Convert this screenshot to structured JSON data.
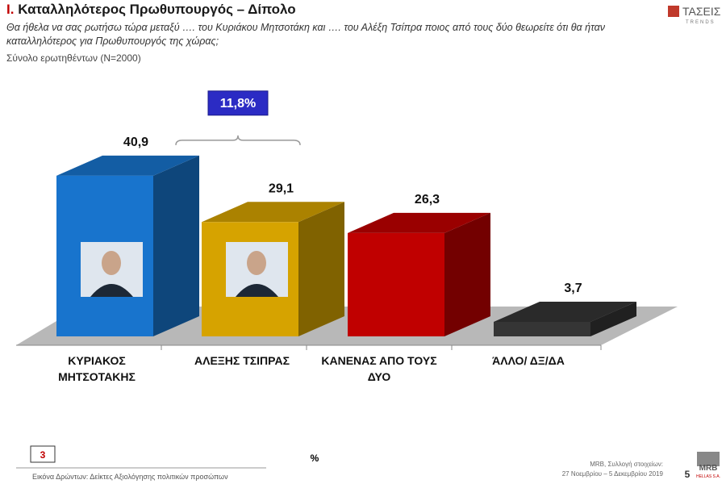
{
  "header": {
    "title_prefix": "Ι.",
    "title": "Καταλληλότερος Πρωθυπουργός – Δίπολο",
    "question": "Θα ήθελα να σας ρωτήσω τώρα μεταξύ …. του Κυριάκου Μητσοτάκη και …. του  Αλέξη Τσίπρα ποιος από τους δύο θεωρείτε ότι θα ήταν καταλληλότερος για Πρωθυπουργός της χώρας;",
    "base": "Σύνολο ερωτηθέντων (N=2000)",
    "logo": "ΤΑΣΕΙΣ",
    "logo_sub": "TRENDS"
  },
  "chart_data": {
    "type": "bar3d",
    "categories": [
      "ΚΥΡΙΑΚΟΣ ΜΗΤΣΟΤΑΚΗΣ",
      "ΑΛΕΞΗΣ ΤΣΙΠΡΑΣ",
      "ΚΑΝΕΝΑΣ ΑΠΟ ΤΟΥΣ ΔΥΟ",
      "ΆΛΛΟ/ ΔΞ/ΔΑ"
    ],
    "values": [
      40.9,
      29.1,
      26.3,
      3.7
    ],
    "value_labels": [
      "40,9",
      "29,1",
      "26,3",
      "3,7"
    ],
    "colors": [
      "#1874cd",
      "#d6a300",
      "#c00000",
      "#353535"
    ],
    "difference": {
      "value": 11.8,
      "label": "11,8%"
    }
  },
  "footer": {
    "section": "3",
    "unit": "%",
    "caption": "Εικόνα Δρώντων: Δείκτες Αξιολόγησης πολιτικών προσώπων",
    "source": "MRB, Συλλογή στοιχείων:",
    "dates": "27 Νοεμβρίου – 5 Δεκεμβρίου 2019",
    "page": "5",
    "brand": "MRB",
    "brand_sub": "HELLAS S.A."
  }
}
